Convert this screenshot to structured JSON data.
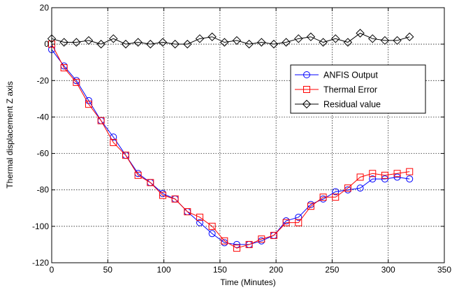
{
  "chart_data": {
    "type": "line",
    "xlabel": "Time (Minutes)",
    "ylabel": "Thermal displacement Z axis",
    "xlim": [
      0,
      350
    ],
    "ylim": [
      -120,
      20
    ],
    "xticks": [
      "0",
      "50",
      "100",
      "150",
      "200",
      "250",
      "300",
      "350"
    ],
    "yticks": [
      "20",
      "0",
      "-20",
      "-40",
      "-60",
      "-80",
      "-100",
      "-120"
    ],
    "grid": true,
    "legend_position": "right",
    "series": [
      {
        "name": "ANFIS Output",
        "color": "#0000ff",
        "marker": "circle",
        "x": [
          0,
          11,
          22,
          33,
          44,
          55,
          66,
          77,
          88,
          99,
          110,
          121,
          132,
          143,
          154,
          165,
          176,
          187,
          198,
          209,
          220,
          231,
          242,
          253,
          264,
          275,
          286,
          297,
          308,
          319
        ],
        "y": [
          -3,
          -12,
          -20,
          -31,
          -42,
          -51,
          -61,
          -71,
          -76,
          -82,
          -85,
          -92,
          -98,
          -104,
          -109,
          -110,
          -110,
          -108,
          -105,
          -97,
          -95,
          -88,
          -85,
          -81,
          -80,
          -79,
          -74,
          -74,
          -73,
          -74
        ]
      },
      {
        "name": "Thermal Error",
        "color": "#ff0000",
        "marker": "square",
        "x": [
          0,
          11,
          22,
          33,
          44,
          55,
          66,
          77,
          88,
          99,
          110,
          121,
          132,
          143,
          154,
          165,
          176,
          187,
          198,
          209,
          220,
          231,
          242,
          253,
          264,
          275,
          286,
          297,
          308,
          319
        ],
        "y": [
          0,
          -13,
          -21,
          -33,
          -42,
          -54,
          -61,
          -72,
          -76,
          -83,
          -85,
          -92,
          -95,
          -100,
          -108,
          -112,
          -110,
          -107,
          -105,
          -98,
          -98,
          -89,
          -84,
          -84,
          -79,
          -73,
          -71,
          -72,
          -71,
          -70
        ]
      },
      {
        "name": "Residual value",
        "color": "#000000",
        "marker": "diamond",
        "x": [
          0,
          11,
          22,
          33,
          44,
          55,
          66,
          77,
          88,
          99,
          110,
          121,
          132,
          143,
          154,
          165,
          176,
          187,
          198,
          209,
          220,
          231,
          242,
          253,
          264,
          275,
          286,
          297,
          308,
          319
        ],
        "y": [
          3,
          1,
          1,
          2,
          0,
          3,
          0,
          1,
          0,
          1,
          0,
          0,
          3,
          4,
          1,
          2,
          0,
          1,
          0,
          1,
          3,
          4,
          1,
          3,
          1,
          6,
          3,
          2,
          2,
          4
        ]
      }
    ]
  }
}
